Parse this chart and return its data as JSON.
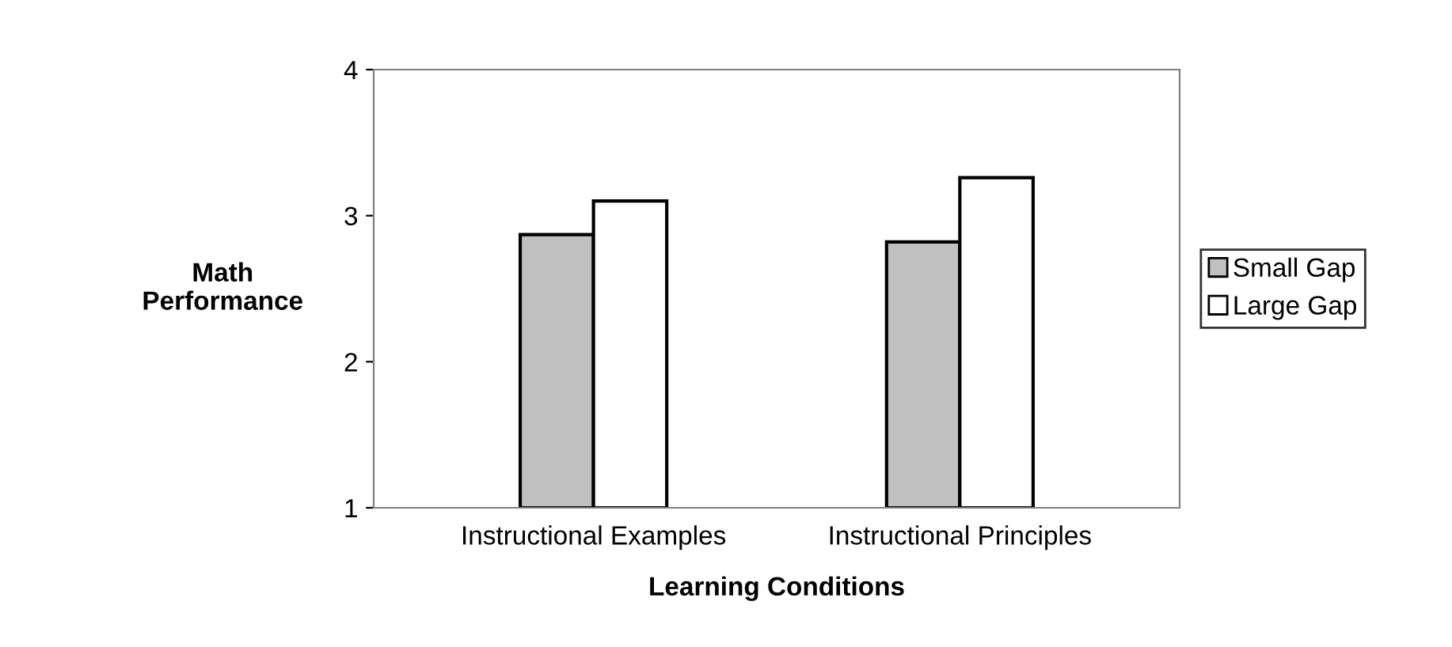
{
  "chart_data": {
    "type": "bar",
    "xlabel": "Learning Conditions",
    "ylabel": "Math\nPerformance",
    "categories": [
      "Instructional Examples",
      "Instructional Principles"
    ],
    "series": [
      {
        "name": "Small Gap",
        "color": "#c0c0c0",
        "values": [
          2.87,
          2.82
        ]
      },
      {
        "name": "Large Gap",
        "color": "#ffffff",
        "values": [
          3.1,
          3.26
        ]
      }
    ],
    "ylim": [
      1,
      4
    ],
    "yticks": [
      1,
      2,
      3,
      4
    ],
    "grid": false,
    "legend": "right"
  }
}
